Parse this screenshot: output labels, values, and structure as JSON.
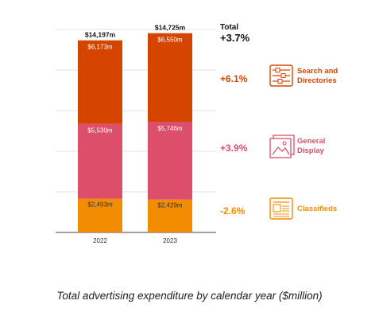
{
  "chart_data": {
    "type": "bar",
    "stacked": true,
    "categories": [
      "2022",
      "2023"
    ],
    "series": [
      {
        "name": "Classifieds",
        "values": [
          2493,
          2429
        ],
        "labels": [
          "$2,493m",
          "$2,429m"
        ],
        "color": "#f28c00",
        "label_color": "#333333",
        "change": "-2.6%"
      },
      {
        "name": "General Display",
        "values": [
          5530,
          5746
        ],
        "labels": [
          "$5,530m",
          "$5,746m"
        ],
        "color": "#dc4e6a",
        "label_color": "#ffffff",
        "change": "+3.9%"
      },
      {
        "name": "Search and Directories",
        "values": [
          6173,
          6550
        ],
        "labels": [
          "$6,173m",
          "$6,550m"
        ],
        "color": "#d44600",
        "label_color": "#ffffff",
        "change": "+6.1%"
      }
    ],
    "totals": {
      "values": [
        14197,
        14725
      ],
      "labels": [
        "$14,197m",
        "$14,725m"
      ]
    },
    "total_change": {
      "title": "Total",
      "value": "+3.7%"
    },
    "legend_rows": [
      {
        "lines": [
          "Search and",
          "Directories"
        ],
        "icon": "search-directories-icon",
        "color": "#d44600"
      },
      {
        "lines": [
          "General",
          "Display"
        ],
        "icon": "image-display-icon",
        "color": "#dc4e6a"
      },
      {
        "lines": [
          "Classifieds"
        ],
        "icon": "newspaper-icon",
        "color": "#f28c00"
      }
    ],
    "ylim": [
      0,
      15000
    ],
    "grid": true,
    "legend_position": "right"
  },
  "caption": "Total advertising expenditure by calendar year ($million)"
}
